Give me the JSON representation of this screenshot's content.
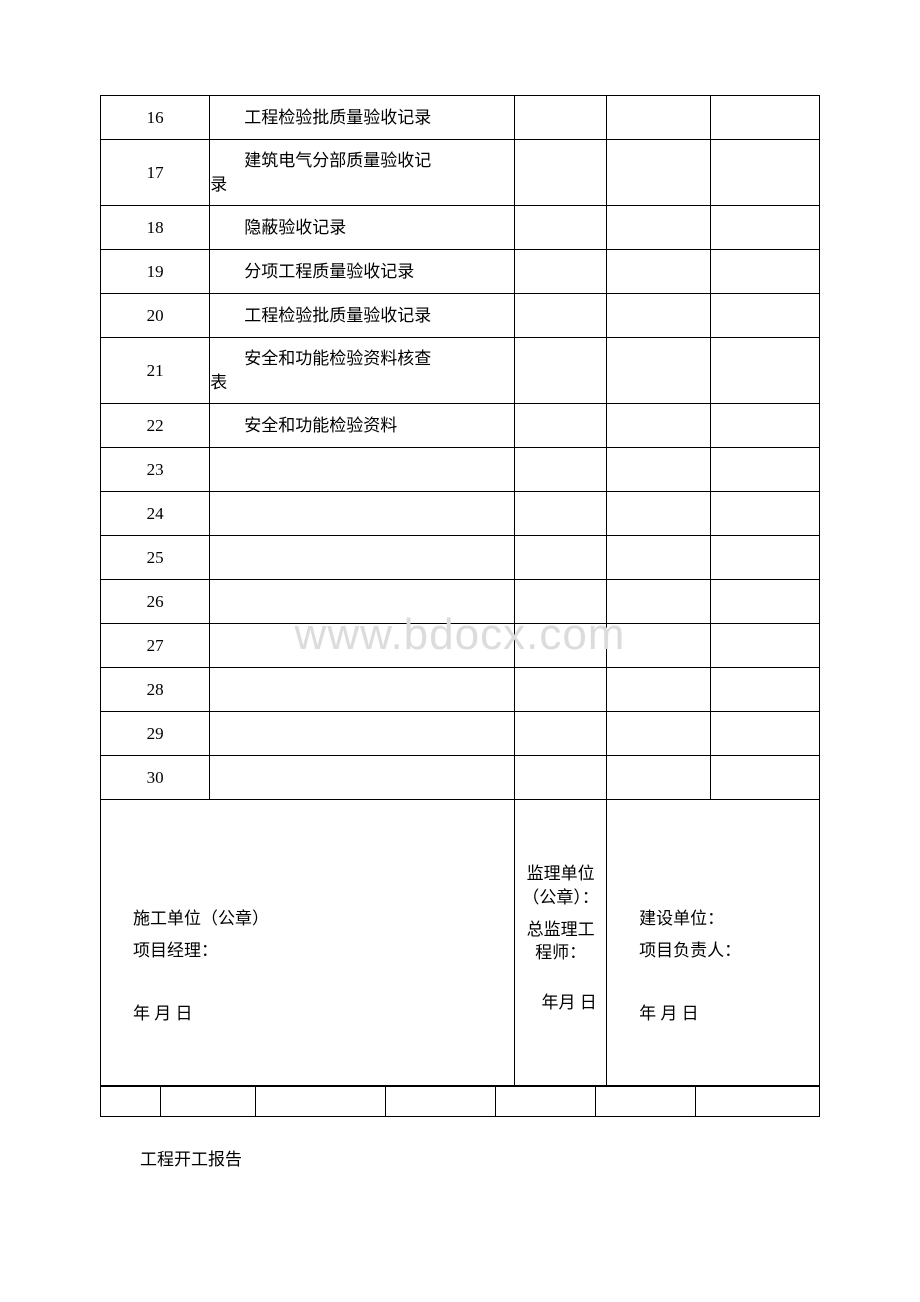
{
  "rows": [
    {
      "num": "16",
      "desc": "工程检验批质量验收记录",
      "tall": false
    },
    {
      "num": "17",
      "desc": "建筑电气分部质量验收记录",
      "tall": true,
      "wrap": true,
      "wrap_first": "建筑电气分部质量验收记",
      "wrap_rest": "录"
    },
    {
      "num": "18",
      "desc": "隐蔽验收记录",
      "tall": false
    },
    {
      "num": "19",
      "desc": "分项工程质量验收记录",
      "tall": false
    },
    {
      "num": "20",
      "desc": "工程检验批质量验收记录",
      "tall": false
    },
    {
      "num": "21",
      "desc": "安全和功能检验资料核查表",
      "tall": true,
      "wrap": true,
      "wrap_first": "安全和功能检验资料核查",
      "wrap_rest": "表"
    },
    {
      "num": "22",
      "desc": "安全和功能检验资料",
      "tall": false
    },
    {
      "num": "23",
      "desc": "",
      "tall": false
    },
    {
      "num": "24",
      "desc": "",
      "tall": false
    },
    {
      "num": "25",
      "desc": "",
      "tall": false
    },
    {
      "num": "26",
      "desc": "",
      "tall": false
    },
    {
      "num": "27",
      "desc": "",
      "tall": false
    },
    {
      "num": "28",
      "desc": "",
      "tall": false
    },
    {
      "num": "29",
      "desc": "",
      "tall": false
    },
    {
      "num": "30",
      "desc": "",
      "tall": false
    }
  ],
  "signatures": {
    "construction": {
      "unit_label": "施工单位（公章）",
      "person_label": "项目经理：",
      "date_label": "年 月 日"
    },
    "supervision": {
      "unit_label": "监理单位（公章）：",
      "person_label": "总监理工程师：",
      "date_label": "年月 日"
    },
    "owner": {
      "unit_label": "建设单位：",
      "person_label": "项目负责人：",
      "date_label": "年 月 日"
    }
  },
  "watermark": "www.bdocx.com",
  "footer": "工程开工报告",
  "colors": {
    "watermark": "#dcdcdc",
    "text": "#000000",
    "border": "#000000",
    "background": "#ffffff"
  }
}
